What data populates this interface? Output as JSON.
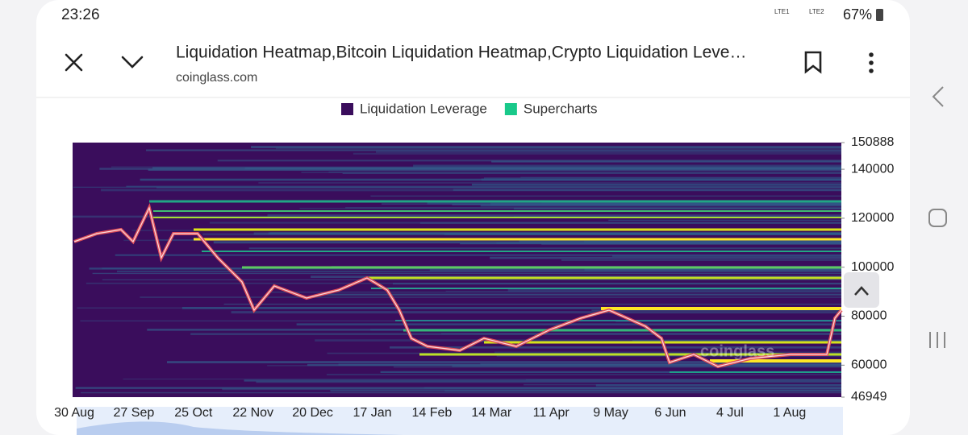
{
  "status": {
    "time": "23:26",
    "sim1": "LTE1",
    "sim2": "LTE2",
    "battery": "67%"
  },
  "toolbar": {
    "title": "Liquidation Heatmap,Bitcoin Liquidation Heatmap,Crypto Liquidation Leve…",
    "url": "coinglass.com"
  },
  "chart_data": {
    "type": "heatmap",
    "legend": [
      {
        "name": "Liquidation Leverage",
        "color": "#3a0d5c"
      },
      {
        "name": "Supercharts",
        "color": "#19c98a"
      }
    ],
    "categories": [
      "30 Aug",
      "27 Sep",
      "25 Oct",
      "22 Nov",
      "20 Dec",
      "17 Jan",
      "14 Feb",
      "14 Mar",
      "11 Apr",
      "9 May",
      "6 Jun",
      "4 Jul",
      "1 Aug"
    ],
    "ylim": [
      46949,
      150888
    ],
    "yticks": [
      150888,
      140000,
      120000,
      100000,
      80000,
      60000,
      46949
    ],
    "watermark": "coinglass"
  }
}
